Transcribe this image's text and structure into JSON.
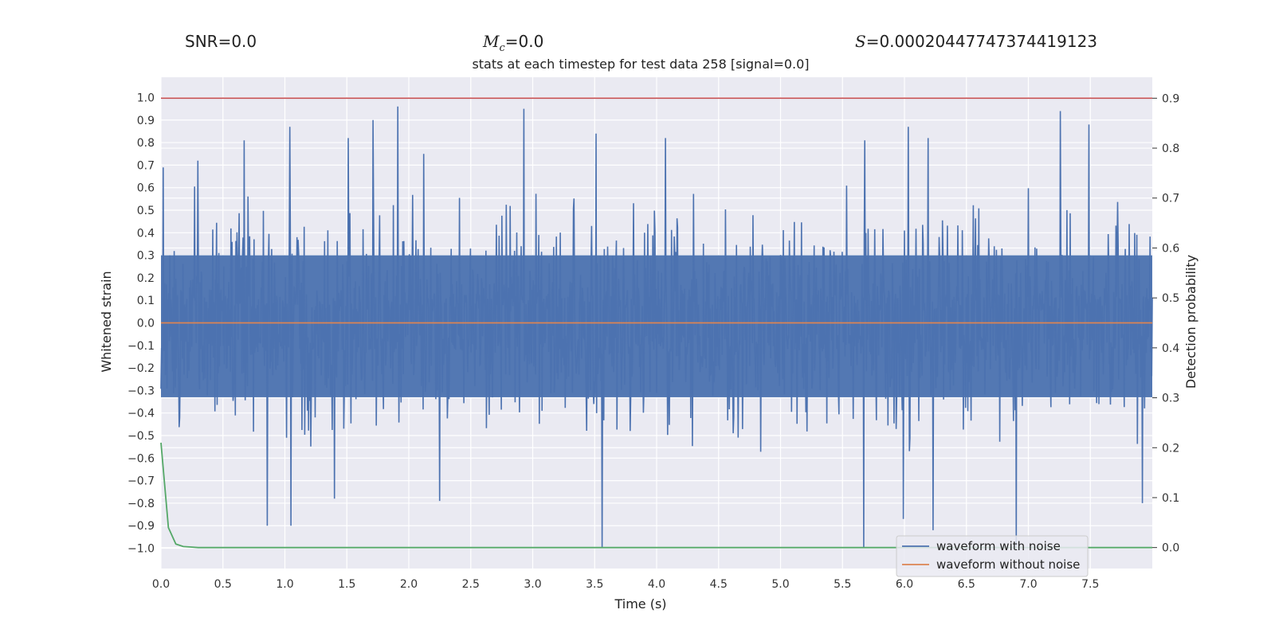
{
  "stats": {
    "snr_label": "SNR",
    "snr_value": "=0.0",
    "mc_symbol": "M",
    "mc_sub": "c",
    "mc_value": "=0.0",
    "s_symbol": "S",
    "s_value": "=0.00020447747374419123"
  },
  "chart_data": {
    "type": "line",
    "title": "stats at each timestep for test data 258 [signal=0.0]",
    "xlabel": "Time (s)",
    "ylabel": "Whitened strain",
    "y2label": "Detection probability",
    "xlim": [
      0.0,
      8.0
    ],
    "ylim": [
      -1.09,
      1.09
    ],
    "y2lim": [
      -0.042,
      0.942
    ],
    "xticks": [
      "0.0",
      "0.5",
      "1.0",
      "1.5",
      "2.0",
      "2.5",
      "3.0",
      "3.5",
      "4.0",
      "4.5",
      "5.0",
      "5.5",
      "6.0",
      "6.5",
      "7.0",
      "7.5"
    ],
    "yticks": [
      "1.0",
      "0.9",
      "0.8",
      "0.7",
      "0.6",
      "0.5",
      "0.4",
      "0.3",
      "0.2",
      "0.1",
      "0.0",
      "−0.1",
      "−0.2",
      "−0.3",
      "−0.4",
      "−0.5",
      "−0.6",
      "−0.7",
      "−0.8",
      "−0.9",
      "−1.0"
    ],
    "y2ticks": [
      "0.9",
      "0.8",
      "0.7",
      "0.6",
      "0.5",
      "0.4",
      "0.3",
      "0.2",
      "0.1",
      "0.0"
    ],
    "grid": true,
    "legend_position": "lower-right",
    "series": [
      {
        "name": "waveform with noise",
        "axis": "left",
        "color": "#4c72b0",
        "style": "dense noise band, mostly within ±0.3, peaks up to ±1.0",
        "peaks": [
          {
            "x": 0.02,
            "y": 0.69
          },
          {
            "x": 0.3,
            "y": 0.72
          },
          {
            "x": 0.67,
            "y": 0.81
          },
          {
            "x": 1.04,
            "y": 0.87
          },
          {
            "x": 1.51,
            "y": 0.82
          },
          {
            "x": 1.71,
            "y": 0.9
          },
          {
            "x": 1.91,
            "y": 0.96
          },
          {
            "x": 2.12,
            "y": 0.75
          },
          {
            "x": 2.93,
            "y": 0.95
          },
          {
            "x": 3.51,
            "y": 0.84
          },
          {
            "x": 4.07,
            "y": 0.82
          },
          {
            "x": 5.68,
            "y": 0.81
          },
          {
            "x": 6.03,
            "y": 0.87
          },
          {
            "x": 6.19,
            "y": 0.82
          },
          {
            "x": 7.26,
            "y": 0.94
          },
          {
            "x": 7.49,
            "y": 0.88
          }
        ],
        "troughs": [
          {
            "x": 0.86,
            "y": -0.9
          },
          {
            "x": 1.05,
            "y": -0.9
          },
          {
            "x": 1.4,
            "y": -0.78
          },
          {
            "x": 2.25,
            "y": -0.79
          },
          {
            "x": 3.56,
            "y": -1.0
          },
          {
            "x": 5.67,
            "y": -1.0
          },
          {
            "x": 5.99,
            "y": -0.87
          },
          {
            "x": 6.23,
            "y": -0.92
          },
          {
            "x": 6.9,
            "y": -0.99
          },
          {
            "x": 7.92,
            "y": -0.8
          }
        ]
      },
      {
        "name": "waveform without noise",
        "axis": "left",
        "color": "#dd8452",
        "x": [
          0.0,
          8.0
        ],
        "y": [
          0.0,
          0.0
        ]
      },
      {
        "axis": "right",
        "color": "#55a868",
        "x": [
          0.0,
          0.06,
          0.12,
          0.18,
          0.24,
          0.3,
          0.5,
          1.0,
          8.0
        ],
        "y": [
          0.21,
          0.04,
          0.007,
          0.002,
          0.001,
          0.0,
          0.0,
          0.0,
          0.0
        ]
      },
      {
        "axis": "right",
        "color": "#c44e52",
        "x": [
          0.0,
          8.0
        ],
        "y": [
          0.9,
          0.9
        ]
      }
    ]
  }
}
